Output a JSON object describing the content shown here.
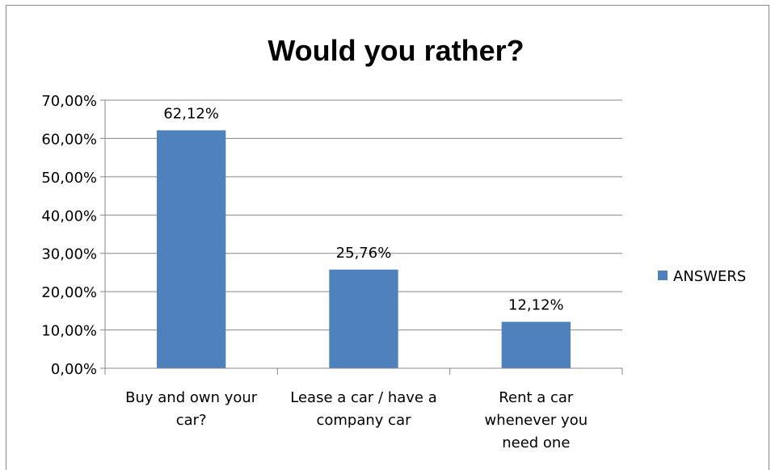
{
  "chart_data": {
    "type": "bar",
    "title": "Would you rather?",
    "categories": [
      [
        "Buy and own your",
        "car?"
      ],
      [
        "Lease a car / have a",
        "company car"
      ],
      [
        "Rent a car",
        "whenever you",
        "need one"
      ]
    ],
    "series": [
      {
        "name": "ANSWERS",
        "values": [
          62.12,
          25.76,
          12.12
        ],
        "color": "#4f81bd"
      }
    ],
    "data_labels": [
      "62,12%",
      "25,76%",
      "12,12%"
    ],
    "y_ticks": [
      "0,00%",
      "10,00%",
      "20,00%",
      "30,00%",
      "40,00%",
      "50,00%",
      "60,00%",
      "70,00%"
    ],
    "ylim": [
      0,
      70
    ],
    "grid": true,
    "legend_position": "right",
    "xlabel": "",
    "ylabel": ""
  }
}
